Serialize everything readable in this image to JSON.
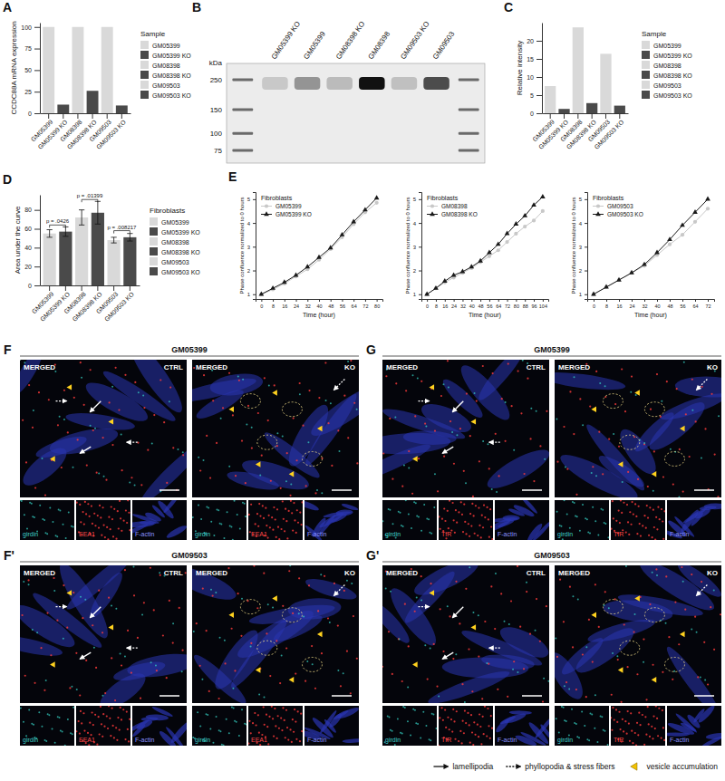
{
  "chart_data": [
    {
      "panel": "A",
      "type": "bar",
      "y_label": "CCDC88A mRNA expression",
      "categories": [
        "GM05399",
        "GM05399 KO",
        "GM08398",
        "GM08398 KO",
        "GM09503",
        "GM09503 KO"
      ],
      "values": [
        100,
        10,
        100,
        26,
        100,
        9
      ],
      "colors": [
        "#d9d9d9",
        "#4a4a4a",
        "#d9d9d9",
        "#4a4a4a",
        "#d9d9d9",
        "#4a4a4a"
      ],
      "ylim": [
        0,
        105
      ],
      "yticks": [
        0,
        25,
        50,
        75,
        100
      ],
      "legend": "right",
      "legend_title": "Sample"
    },
    {
      "panel": "C",
      "type": "bar",
      "y_label": "Relative intensity",
      "categories": [
        "GM05399",
        "GM05399 KO",
        "GM08398",
        "GM08398 KO",
        "GM09503",
        "GM09503 KO"
      ],
      "values": [
        7.5,
        1.2,
        23.7,
        2.8,
        16.4,
        2.1
      ],
      "colors": [
        "#d9d9d9",
        "#4a4a4a",
        "#d9d9d9",
        "#4a4a4a",
        "#d9d9d9",
        "#4a4a4a"
      ],
      "ylim": [
        0,
        25
      ],
      "yticks": [
        0,
        5,
        10,
        15,
        20
      ],
      "legend": "right",
      "legend_title": "Sample"
    },
    {
      "panel": "D",
      "type": "bar",
      "y_label": "Area under the curve",
      "categories": [
        "GM05399",
        "GM05399 KO",
        "GM08398",
        "GM08398 KO",
        "GM09503",
        "GM09503 KO"
      ],
      "values": [
        55,
        57,
        72,
        77,
        48,
        51
      ],
      "errors": [
        4,
        5,
        8,
        12,
        3,
        4
      ],
      "colors": [
        "#d9d9d9",
        "#4a4a4a",
        "#d9d9d9",
        "#4a4a4a",
        "#d9d9d9",
        "#4a4a4a"
      ],
      "ylim": [
        0,
        96
      ],
      "yticks": [
        0,
        20,
        40,
        60,
        80
      ],
      "annotations": [
        {
          "text": "p = .0426",
          "y": 64
        },
        {
          "text": "p = .01399",
          "y": 91
        },
        {
          "text": "p = .008217",
          "y": 58
        }
      ],
      "legend": "right",
      "legend_title": "Fibroblasts"
    },
    {
      "panel": "E",
      "type": "line",
      "x_label": "Time (hour)",
      "y_label": "Phase confluence normalized to 0 hours",
      "x": [
        0,
        8,
        16,
        24,
        32,
        40,
        48,
        56,
        64,
        72,
        80
      ],
      "series": [
        {
          "name": "GM05399",
          "color": "#c8c8c8",
          "marker": "circle",
          "values": [
            1,
            1.2,
            1.45,
            1.75,
            2.05,
            2.45,
            2.9,
            3.4,
            3.95,
            4.45,
            4.85
          ]
        },
        {
          "name": "GM05399 KO",
          "color": "#1a1a1a",
          "marker": "triangle",
          "values": [
            1,
            1.25,
            1.5,
            1.8,
            2.15,
            2.55,
            2.95,
            3.5,
            4.05,
            4.55,
            5.05
          ]
        }
      ],
      "xlim": [
        -4,
        84
      ],
      "xticks": [
        0,
        8,
        16,
        24,
        32,
        40,
        48,
        56,
        64,
        72,
        80
      ],
      "ylim": [
        0.8,
        5.3
      ],
      "yticks": [
        1,
        2,
        3,
        4,
        5
      ],
      "legend": "top-left",
      "legend_title": "Fibroblasts"
    },
    {
      "type": "line",
      "x_label": "Time (hour)",
      "y_label": "Phase confluence normalized to 0 hours",
      "x": [
        0,
        8,
        16,
        24,
        32,
        40,
        48,
        56,
        64,
        72,
        80,
        88,
        96,
        104
      ],
      "series": [
        {
          "name": "GM08398",
          "color": "#c8c8c8",
          "marker": "circle",
          "values": [
            1,
            1.25,
            1.5,
            1.7,
            1.9,
            2.1,
            2.35,
            2.6,
            2.85,
            3.2,
            3.55,
            3.85,
            4.1,
            4.5
          ]
        },
        {
          "name": "GM08398 KO",
          "color": "#1a1a1a",
          "marker": "triangle",
          "values": [
            1,
            1.25,
            1.55,
            1.8,
            1.95,
            2.15,
            2.4,
            2.75,
            3.1,
            3.55,
            3.95,
            4.3,
            4.75,
            5.1
          ]
        }
      ],
      "xlim": [
        -5,
        109
      ],
      "xticks": [
        0,
        8,
        16,
        24,
        32,
        40,
        48,
        56,
        64,
        72,
        80,
        88,
        96,
        104
      ],
      "ylim": [
        0.8,
        5.3
      ],
      "yticks": [
        1,
        2,
        3,
        4,
        5
      ],
      "legend": "top-left",
      "legend_title": "Fibroblasts"
    },
    {
      "type": "line",
      "x_label": "Time (hour)",
      "y_label": "Phase confluence normalized to 0 hours",
      "x": [
        0,
        8,
        16,
        24,
        32,
        40,
        48,
        56,
        64,
        72
      ],
      "series": [
        {
          "name": "GM09503",
          "color": "#c8c8c8",
          "marker": "circle",
          "values": [
            1,
            1.3,
            1.6,
            1.9,
            2.2,
            2.65,
            3.1,
            3.5,
            4.05,
            4.6
          ]
        },
        {
          "name": "GM09503 KO",
          "color": "#1a1a1a",
          "marker": "triangle",
          "values": [
            1,
            1.3,
            1.6,
            1.9,
            2.25,
            2.75,
            3.3,
            3.9,
            4.45,
            5.0
          ]
        }
      ],
      "xlim": [
        -4,
        76
      ],
      "xticks": [
        0,
        8,
        16,
        24,
        32,
        40,
        48,
        56,
        64,
        72
      ],
      "ylim": [
        0.8,
        5.3
      ],
      "yticks": [
        1,
        2,
        3,
        4,
        5
      ],
      "legend": "top-left",
      "legend_title": "Fibroblasts"
    }
  ],
  "blot": {
    "panel": "B",
    "unit": "kDa",
    "markers": [
      250,
      150,
      100,
      75
    ],
    "lanes": [
      null,
      "GM05399 KO",
      "GM05399",
      "GM08398 KO",
      "GM08398",
      "GM09503 KO",
      "GM09503",
      null
    ]
  },
  "image_panels": [
    {
      "letter": "F",
      "title": "GM05399",
      "images": [
        {
          "label": "MERGED",
          "condition": "CTRL"
        },
        {
          "label": "MERGED",
          "condition": "KO"
        }
      ],
      "channels": [
        "girdin",
        "EEA1",
        "F-actin"
      ]
    },
    {
      "letter": "G",
      "title": "GM05399",
      "images": [
        {
          "label": "MERGED",
          "condition": "CTRL"
        },
        {
          "label": "MERGED",
          "condition": "KO"
        }
      ],
      "channels": [
        "girdin",
        "TfR",
        "F-actin"
      ]
    },
    {
      "letter": "F'",
      "title": "GM09503",
      "images": [
        {
          "label": "MERGED",
          "condition": "CTRL"
        },
        {
          "label": "MERGED",
          "condition": "KO"
        }
      ],
      "channels": [
        "girdin",
        "EEA1",
        "F-actin"
      ]
    },
    {
      "letter": "G'",
      "title": "GM09503",
      "images": [
        {
          "label": "MERGED",
          "condition": "CTRL"
        },
        {
          "label": "MERGED",
          "condition": "KO"
        }
      ],
      "channels": [
        "girdin",
        "TfR",
        "F-actin"
      ]
    }
  ],
  "figure_legend": [
    "lamellipodia",
    "phyllopodia & stress fibers",
    "vesicle accumulation"
  ]
}
